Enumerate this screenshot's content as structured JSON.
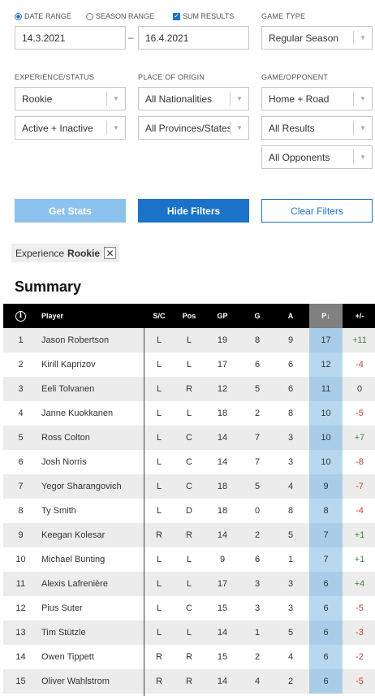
{
  "filters": {
    "date_range_label": "DATE RANGE",
    "season_range_label": "SEASON RANGE",
    "sum_results_label": "SUM RESULTS",
    "date_from": "14.3.2021",
    "date_to": "16.4.2021",
    "date_separator": "–",
    "game_type_label": "GAME TYPE",
    "game_type_value": "Regular Season",
    "experience_label": "EXPERIENCE/STATUS",
    "experience_value": "Rookie",
    "status_value": "Active + Inactive",
    "origin_label": "PLACE OF ORIGIN",
    "nationality_value": "All Nationalities",
    "province_value": "All Provinces/States",
    "opponent_label": "GAME/OPPONENT",
    "home_road_value": "Home + Road",
    "results_value": "All Results",
    "opponents_value": "All Opponents"
  },
  "buttons": {
    "get_stats": "Get Stats",
    "hide_filters": "Hide Filters",
    "clear_filters": "Clear Filters"
  },
  "chip": {
    "category": "Experience",
    "value": "Rookie",
    "close_glyph": "✕"
  },
  "summary_title": "Summary",
  "table": {
    "headers": {
      "info": "i",
      "player": "Player",
      "sc": "S/C",
      "pos": "Pos",
      "gp": "GP",
      "g": "G",
      "a": "A",
      "p": "P↓",
      "pm": "+/-"
    },
    "rows": [
      {
        "rank": "1",
        "player": "Jason Robertson",
        "sc": "L",
        "pos": "L",
        "gp": "19",
        "g": "8",
        "a": "9",
        "p": "17",
        "pm": "+11"
      },
      {
        "rank": "2",
        "player": "Kirill Kaprizov",
        "sc": "L",
        "pos": "L",
        "gp": "17",
        "g": "6",
        "a": "6",
        "p": "12",
        "pm": "-4"
      },
      {
        "rank": "3",
        "player": "Eeli Tolvanen",
        "sc": "L",
        "pos": "R",
        "gp": "12",
        "g": "5",
        "a": "6",
        "p": "11",
        "pm": "0"
      },
      {
        "rank": "4",
        "player": "Janne Kuokkanen",
        "sc": "L",
        "pos": "L",
        "gp": "18",
        "g": "2",
        "a": "8",
        "p": "10",
        "pm": "-5"
      },
      {
        "rank": "5",
        "player": "Ross Colton",
        "sc": "L",
        "pos": "C",
        "gp": "14",
        "g": "7",
        "a": "3",
        "p": "10",
        "pm": "+7"
      },
      {
        "rank": "6",
        "player": "Josh Norris",
        "sc": "L",
        "pos": "C",
        "gp": "14",
        "g": "7",
        "a": "3",
        "p": "10",
        "pm": "-8"
      },
      {
        "rank": "7",
        "player": "Yegor Sharangovich",
        "sc": "L",
        "pos": "C",
        "gp": "18",
        "g": "5",
        "a": "4",
        "p": "9",
        "pm": "-7"
      },
      {
        "rank": "8",
        "player": "Ty Smith",
        "sc": "L",
        "pos": "D",
        "gp": "18",
        "g": "0",
        "a": "8",
        "p": "8",
        "pm": "-4"
      },
      {
        "rank": "9",
        "player": "Keegan Kolesar",
        "sc": "R",
        "pos": "R",
        "gp": "14",
        "g": "2",
        "a": "5",
        "p": "7",
        "pm": "+1"
      },
      {
        "rank": "10",
        "player": "Michael Bunting",
        "sc": "L",
        "pos": "L",
        "gp": "9",
        "g": "6",
        "a": "1",
        "p": "7",
        "pm": "+1"
      },
      {
        "rank": "11",
        "player": "Alexis Lafrenière",
        "sc": "L",
        "pos": "L",
        "gp": "17",
        "g": "3",
        "a": "3",
        "p": "6",
        "pm": "+4"
      },
      {
        "rank": "12",
        "player": "Pius Suter",
        "sc": "L",
        "pos": "C",
        "gp": "15",
        "g": "3",
        "a": "3",
        "p": "6",
        "pm": "-5"
      },
      {
        "rank": "13",
        "player": "Tim Stützle",
        "sc": "L",
        "pos": "L",
        "gp": "14",
        "g": "1",
        "a": "5",
        "p": "6",
        "pm": "-3"
      },
      {
        "rank": "14",
        "player": "Owen Tippett",
        "sc": "R",
        "pos": "R",
        "gp": "15",
        "g": "2",
        "a": "4",
        "p": "6",
        "pm": "-2"
      },
      {
        "rank": "15",
        "player": "Oliver Wahlstrom",
        "sc": "R",
        "pos": "R",
        "gp": "14",
        "g": "4",
        "a": "2",
        "p": "6",
        "pm": "-5"
      }
    ]
  },
  "colors": {
    "accent": "#1a73c8",
    "sorted_header": "#808080",
    "sorted_column": "#b8d8f0",
    "positive": "#3a8a3a",
    "negative": "#d23b3b"
  }
}
